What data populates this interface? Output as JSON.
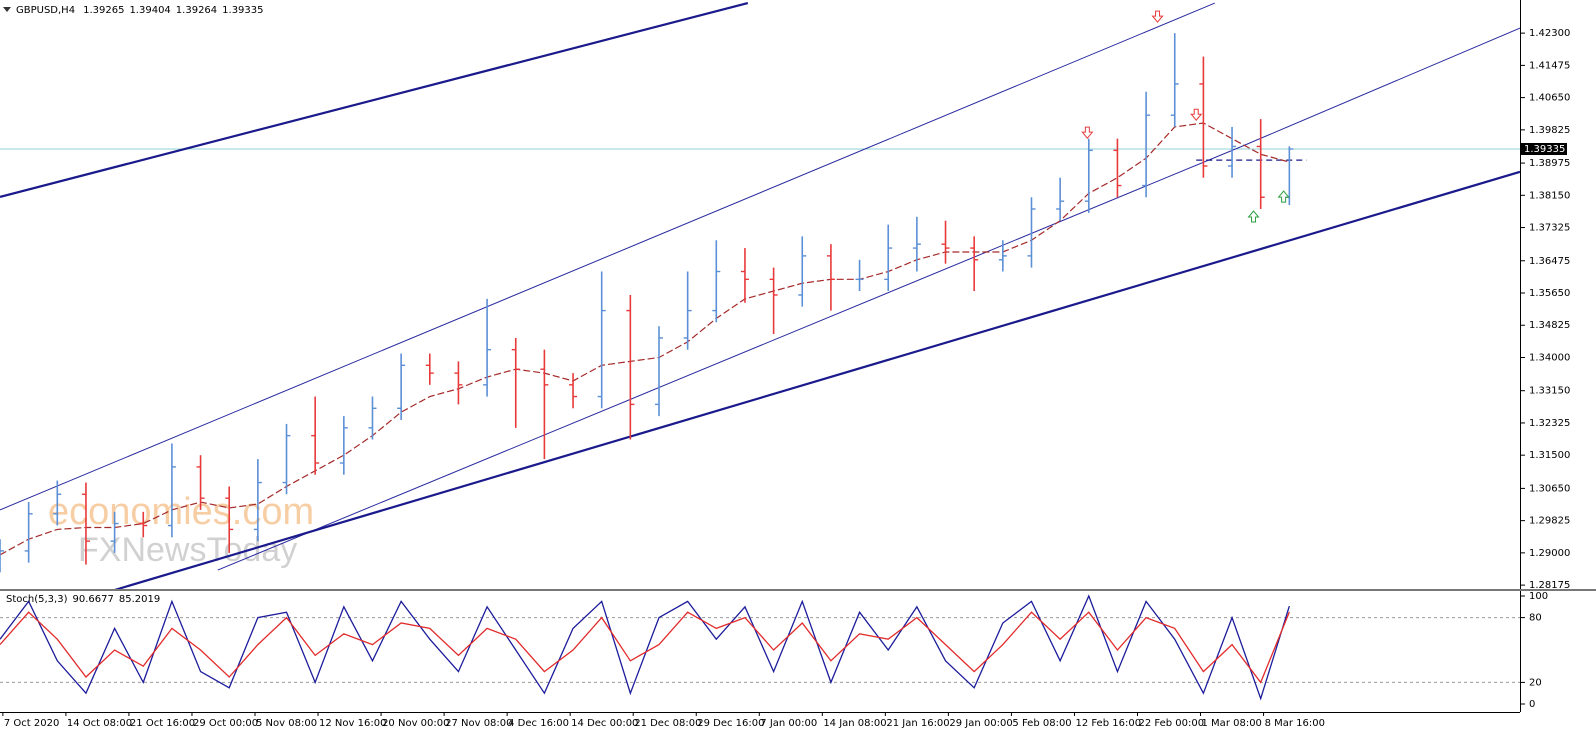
{
  "chart_data": [
    {
      "type": "ohlc",
      "title": "GBPUSD,H4",
      "header_values": [
        {
          "value": 1.39265,
          "label": "1.39265"
        },
        {
          "value": 1.39404,
          "label": "1.39404"
        },
        {
          "value": 1.39264,
          "label": "1.39264"
        },
        {
          "value": 1.39335,
          "label": "1.39335"
        }
      ],
      "x": [
        0,
        20,
        40,
        60,
        80,
        100,
        120,
        140,
        160,
        180,
        200,
        220,
        240,
        260,
        280,
        300,
        320,
        340,
        360,
        380,
        400,
        420,
        440,
        460,
        480,
        500,
        520,
        540,
        560,
        580,
        600,
        620,
        640,
        660,
        680,
        700,
        720,
        740,
        760,
        780,
        800,
        820,
        840,
        860,
        880,
        900
      ],
      "open": [
        1.288,
        1.2905,
        1.3,
        1.305,
        1.293,
        1.2975,
        1.297,
        1.312,
        1.304,
        1.296,
        1.308,
        1.32,
        1.313,
        1.322,
        1.327,
        1.338,
        1.336,
        1.333,
        1.342,
        1.337,
        1.333,
        1.33,
        1.352,
        1.328,
        1.345,
        1.352,
        1.362,
        1.36,
        1.356,
        1.366,
        1.36,
        1.36,
        1.368,
        1.369,
        1.368,
        1.365,
        1.366,
        1.378,
        1.38,
        1.393,
        1.384,
        1.402,
        1.41,
        1.389,
        1.394,
        1.381
      ],
      "high": [
        1.2935,
        1.303,
        1.3085,
        1.308,
        1.3005,
        1.3005,
        1.318,
        1.315,
        1.307,
        1.314,
        1.323,
        1.33,
        1.325,
        1.33,
        1.341,
        1.341,
        1.339,
        1.355,
        1.345,
        1.342,
        1.336,
        1.362,
        1.356,
        1.348,
        1.362,
        1.37,
        1.368,
        1.363,
        1.371,
        1.369,
        1.365,
        1.374,
        1.376,
        1.375,
        1.371,
        1.37,
        1.381,
        1.386,
        1.396,
        1.396,
        1.408,
        1.423,
        1.417,
        1.399,
        1.401,
        1.39404
      ],
      "low": [
        1.285,
        1.2875,
        1.297,
        1.287,
        1.29,
        1.294,
        1.294,
        1.301,
        1.29,
        1.293,
        1.305,
        1.31,
        1.31,
        1.319,
        1.324,
        1.333,
        1.328,
        1.33,
        1.322,
        1.314,
        1.327,
        1.327,
        1.319,
        1.325,
        1.342,
        1.349,
        1.354,
        1.346,
        1.353,
        1.352,
        1.357,
        1.357,
        1.362,
        1.364,
        1.357,
        1.362,
        1.363,
        1.375,
        1.377,
        1.381,
        1.381,
        1.399,
        1.386,
        1.386,
        1.378,
        1.379
      ],
      "close": [
        1.2905,
        1.3,
        1.305,
        1.293,
        1.2975,
        1.297,
        1.312,
        1.304,
        1.296,
        1.308,
        1.32,
        1.313,
        1.322,
        1.327,
        1.338,
        1.336,
        1.333,
        1.342,
        1.337,
        1.333,
        1.33,
        1.352,
        1.328,
        1.345,
        1.352,
        1.362,
        1.36,
        1.356,
        1.366,
        1.36,
        1.36,
        1.368,
        1.369,
        1.368,
        1.365,
        1.366,
        1.378,
        1.38,
        1.393,
        1.384,
        1.402,
        1.41,
        1.389,
        1.394,
        1.381,
        1.39335
      ],
      "up_color": "#5b8fd6",
      "down_color": "#e8393a",
      "ma": {
        "color": "#a52a2a",
        "values": [
          1.2895,
          1.2935,
          1.296,
          1.2965,
          1.2965,
          1.2975,
          1.301,
          1.303,
          1.3015,
          1.3025,
          1.307,
          1.311,
          1.315,
          1.32,
          1.326,
          1.33,
          1.332,
          1.335,
          1.337,
          1.336,
          1.334,
          1.338,
          1.339,
          1.34,
          1.344,
          1.35,
          1.355,
          1.357,
          1.359,
          1.36,
          1.36,
          1.362,
          1.365,
          1.367,
          1.367,
          1.367,
          1.37,
          1.375,
          1.382,
          1.386,
          1.391,
          1.399,
          1.4,
          1.396,
          1.392,
          1.39
        ]
      },
      "current_line_color": "#8fd3d8",
      "trendlines": [
        {
          "x": [
            0,
            522
          ],
          "y": [
            1.3811,
            1.4307
          ],
          "color": "#1a1a8c",
          "width": 2.2
        },
        {
          "x": [
            0,
            848
          ],
          "y": [
            1.301,
            1.4307
          ],
          "color": "#2a2aa0",
          "width": 1
        },
        {
          "x": [
            866,
            1061
          ],
          "y": [
            1.3939,
            1.4243
          ],
          "color": "#2a2aa0",
          "width": 1
        },
        {
          "x": [
            152,
            866
          ],
          "y": [
            1.2856,
            1.3939
          ],
          "color": "#2a2aa0",
          "width": 1
        },
        {
          "x": [
            80,
            1061
          ],
          "y": [
            1.2805,
            1.3875
          ],
          "color": "#1a1a8c",
          "width": 2.2
        },
        {
          "x": [
            835,
            912
          ],
          "y": [
            1.3905,
            1.3905
          ],
          "color": "#1a1a8c",
          "width": 1.2,
          "dashed": true
        }
      ],
      "arrows": [
        {
          "x": 808,
          "y": 1.4271,
          "direction": "down",
          "color": "#e8393a"
        },
        {
          "x": 759,
          "y": 1.3974,
          "direction": "down",
          "color": "#e8393a"
        },
        {
          "x": 835,
          "y": 1.402,
          "direction": "down",
          "color": "#e8393a"
        },
        {
          "x": 875,
          "y": 1.3762,
          "direction": "up",
          "color": "#2e9e3e"
        },
        {
          "x": 896,
          "y": 1.3813,
          "direction": "up",
          "color": "#2e9e3e"
        }
      ],
      "watermark": [
        "economies.com",
        "FXNewsToday"
      ],
      "xlim": [
        0,
        1061
      ],
      "xticks": [
        {
          "value": 2,
          "label": "7 Oct 2020"
        },
        {
          "value": 46,
          "label": "14 Oct 08:00"
        },
        {
          "value": 90,
          "label": "21 Oct 16:00"
        },
        {
          "value": 134,
          "label": "29 Oct 00:00"
        },
        {
          "value": 178,
          "label": "5 Nov 08:00"
        },
        {
          "value": 222,
          "label": "12 Nov 16:00"
        },
        {
          "value": 266,
          "label": "20 Nov 00:00"
        },
        {
          "value": 310,
          "label": "27 Nov 08:00"
        },
        {
          "value": 354,
          "label": "4 Dec 16:00"
        },
        {
          "value": 398,
          "label": "14 Dec 00:00"
        },
        {
          "value": 442,
          "label": "21 Dec 08:00"
        },
        {
          "value": 486,
          "label": "29 Dec 16:00"
        },
        {
          "value": 530,
          "label": "7 Jan 00:00"
        },
        {
          "value": 574,
          "label": "14 Jan 08:00"
        },
        {
          "value": 618,
          "label": "21 Jan 16:00"
        },
        {
          "value": 662,
          "label": "29 Jan 00:00"
        },
        {
          "value": 706,
          "label": "5 Feb 08:00"
        },
        {
          "value": 750,
          "label": "12 Feb 16:00"
        },
        {
          "value": 794,
          "label": "22 Feb 00:00"
        },
        {
          "value": 838,
          "label": "1 Mar 08:00"
        },
        {
          "value": 882,
          "label": "8 Mar 16:00"
        }
      ],
      "ylim": [
        1.2805,
        1.4302
      ],
      "yticks": [
        {
          "value": 1.423,
          "label": "1.42300"
        },
        1.41475,
        {
          "value": 1.4065,
          "label": "1.40650"
        },
        1.39825,
        1.38975,
        {
          "value": 1.3815,
          "label": "1.38150"
        },
        1.37325,
        1.36475,
        {
          "value": 1.3565,
          "label": "1.35650"
        },
        1.34825,
        {
          "value": 1.34,
          "label": "1.34000"
        },
        {
          "value": 1.3315,
          "label": "1.33150"
        },
        1.32325,
        {
          "value": 1.315,
          "label": "1.31500"
        },
        {
          "value": 1.3065,
          "label": "1.30650"
        },
        1.29825,
        {
          "value": 1.29,
          "label": "1.29000"
        },
        1.28175
      ],
      "grid": false
    },
    {
      "type": "line",
      "title": "Stoch(5,3,3)",
      "series": [
        {
          "color": "#1c1c9c",
          "values": [
            60,
            95,
            40,
            10,
            70,
            20,
            95,
            30,
            15,
            80,
            85,
            20,
            90,
            40,
            95,
            60,
            30,
            90,
            50,
            10,
            70,
            95,
            10,
            80,
            95,
            60,
            90,
            30,
            95,
            20,
            85,
            50,
            90,
            40,
            15,
            75,
            95,
            40,
            100,
            30,
            95,
            60,
            10,
            80,
            5,
            90.6677
          ]
        },
        {
          "color": "#e22b2b",
          "values": [
            55,
            85,
            60,
            25,
            50,
            35,
            70,
            50,
            25,
            55,
            80,
            45,
            65,
            55,
            75,
            70,
            45,
            70,
            60,
            30,
            50,
            80,
            40,
            55,
            85,
            70,
            80,
            50,
            75,
            40,
            65,
            60,
            80,
            55,
            30,
            55,
            85,
            60,
            85,
            50,
            80,
            70,
            30,
            55,
            20,
            85.2019
          ]
        }
      ],
      "ylim": [
        0,
        100
      ],
      "yticks": [
        100,
        80,
        20,
        0
      ],
      "level_lines": true
    }
  ]
}
